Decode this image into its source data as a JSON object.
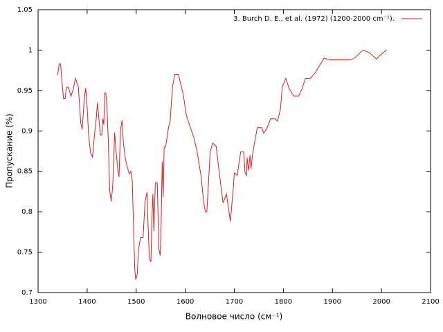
{
  "chart_data": {
    "type": "line",
    "xlabel": "Волновое число (см⁻¹)",
    "ylabel": "Пропускание (%)",
    "xlim": [
      1300,
      2100
    ],
    "ylim": [
      0.7,
      1.05
    ],
    "xticks": [
      1300,
      1400,
      1500,
      1600,
      1700,
      1800,
      1900,
      2000,
      2100
    ],
    "yticks": [
      0.7,
      0.75,
      0.8,
      0.85,
      0.9,
      0.95,
      1,
      1.05
    ],
    "legend": "top-right",
    "x": [
      1340,
      1343,
      1346,
      1348,
      1352,
      1355,
      1358,
      1362,
      1367,
      1372,
      1376,
      1382,
      1387,
      1390,
      1394,
      1397,
      1400,
      1403,
      1407,
      1411,
      1415,
      1419,
      1421,
      1424,
      1427,
      1430,
      1432,
      1434,
      1436,
      1438,
      1440,
      1443,
      1446,
      1449,
      1452,
      1454,
      1456,
      1459,
      1462,
      1465,
      1468,
      1471,
      1474,
      1478,
      1482,
      1486,
      1489,
      1492,
      1494,
      1497,
      1499,
      1502,
      1505,
      1509,
      1514,
      1518,
      1522,
      1525,
      1527,
      1530,
      1532,
      1534,
      1536,
      1539,
      1543,
      1546,
      1549,
      1551,
      1553,
      1555,
      1557,
      1560,
      1566,
      1569,
      1574,
      1579,
      1586,
      1590,
      1596,
      1602,
      1610,
      1617,
      1624,
      1632,
      1638,
      1641,
      1644,
      1651,
      1656,
      1663,
      1669,
      1677,
      1684,
      1692,
      1698,
      1700,
      1706,
      1713,
      1719,
      1722,
      1725,
      1726,
      1729,
      1732,
      1734,
      1737,
      1742,
      1747,
      1756,
      1760,
      1767,
      1774,
      1783,
      1788,
      1794,
      1798,
      1805,
      1812,
      1821,
      1831,
      1838,
      1845,
      1855,
      1865,
      1873,
      1883,
      1895,
      1935,
      1945,
      1952,
      1962,
      1975,
      1982,
      1990,
      1998,
      2010
    ],
    "series": [
      {
        "name": "3. Burch D. E., et al. (1972) (1200-2000 cm⁻¹).",
        "color": "#e41a1c",
        "values": [
          0.969,
          0.983,
          0.983,
          0.965,
          0.94,
          0.94,
          0.954,
          0.954,
          0.943,
          0.952,
          0.965,
          0.955,
          0.91,
          0.902,
          0.938,
          0.953,
          0.93,
          0.895,
          0.873,
          0.868,
          0.895,
          0.918,
          0.935,
          0.915,
          0.895,
          0.895,
          0.915,
          0.908,
          0.947,
          0.947,
          0.935,
          0.89,
          0.826,
          0.813,
          0.83,
          0.86,
          0.898,
          0.875,
          0.855,
          0.843,
          0.9,
          0.913,
          0.885,
          0.865,
          0.855,
          0.847,
          0.85,
          0.838,
          0.795,
          0.73,
          0.716,
          0.722,
          0.755,
          0.768,
          0.768,
          0.812,
          0.824,
          0.77,
          0.742,
          0.738,
          0.79,
          0.822,
          0.776,
          0.836,
          0.836,
          0.755,
          0.746,
          0.79,
          0.862,
          0.818,
          0.88,
          0.88,
          0.905,
          0.91,
          0.955,
          0.97,
          0.97,
          0.96,
          0.945,
          0.92,
          0.905,
          0.893,
          0.875,
          0.845,
          0.81,
          0.8,
          0.8,
          0.875,
          0.885,
          0.881,
          0.85,
          0.811,
          0.822,
          0.788,
          0.83,
          0.848,
          0.845,
          0.874,
          0.874,
          0.848,
          0.845,
          0.867,
          0.851,
          0.87,
          0.853,
          0.87,
          0.888,
          0.904,
          0.904,
          0.897,
          0.904,
          0.915,
          0.915,
          0.912,
          0.927,
          0.955,
          0.965,
          0.952,
          0.943,
          0.943,
          0.952,
          0.965,
          0.965,
          0.972,
          0.98,
          0.99,
          0.988,
          0.988,
          0.99,
          0.994,
          1.0,
          0.997,
          0.993,
          0.989,
          0.994,
          1.0
        ]
      }
    ]
  }
}
